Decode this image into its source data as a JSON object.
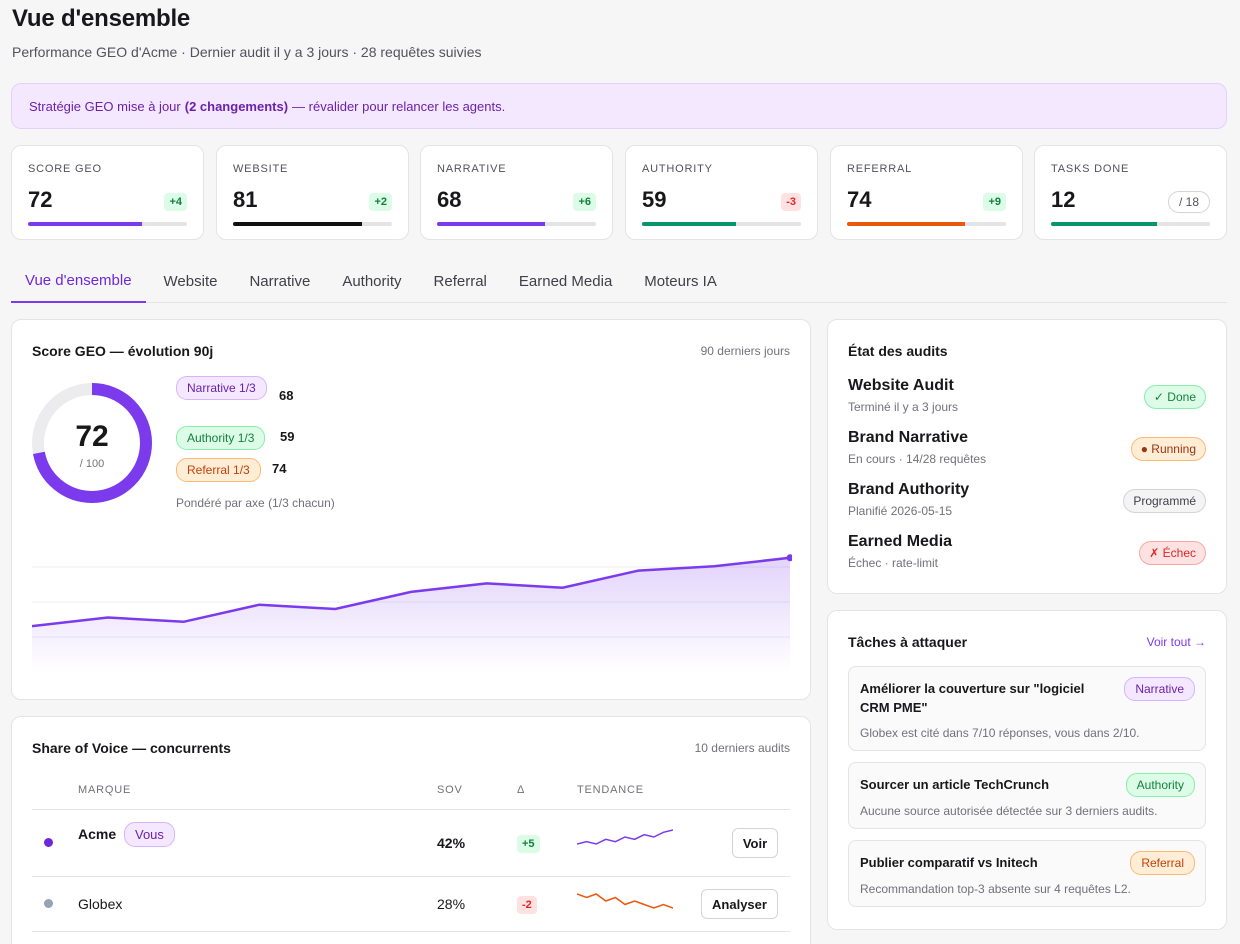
{
  "page": {
    "title": "Vue d'ensemble",
    "subtitle": "Performance GEO d'Acme · Dernier audit il y a 3 jours · 28 requêtes suivies"
  },
  "banner": {
    "text_before": "Stratégie GEO mise à jour",
    "highlight": "(2 changements)",
    "text_after": "— révalider pour relancer les agents."
  },
  "kpis": [
    {
      "label": "SCORE GEO",
      "value": "72",
      "delta": "+4",
      "delta_type": "pos",
      "progress": 0.72,
      "color": "#7c3aed"
    },
    {
      "label": "WEBSITE",
      "value": "81",
      "delta": "+2",
      "delta_type": "pos",
      "progress": 0.81,
      "color": "#111111"
    },
    {
      "label": "NARRATIVE",
      "value": "68",
      "delta": "+6",
      "delta_type": "pos",
      "progress": 0.68,
      "color": "#7c3aed"
    },
    {
      "label": "AUTHORITY",
      "value": "59",
      "delta": "-3",
      "delta_type": "neg",
      "progress": 0.59,
      "color": "#059669"
    },
    {
      "label": "REFERRAL",
      "value": "74",
      "delta": "+9",
      "delta_type": "pos",
      "progress": 0.74,
      "color": "#ea580c"
    },
    {
      "label": "TASKS DONE",
      "value": "12",
      "delta": "/ 18",
      "delta_type": "outof",
      "progress": 0.667,
      "color": "#059669"
    }
  ],
  "tabs": [
    "Vue d'ensemble",
    "Website",
    "Narrative",
    "Authority",
    "Referral",
    "Earned Media",
    "Moteurs IA"
  ],
  "score_card": {
    "title": "Score GEO — évolution 90j",
    "meta": "90 derniers jours",
    "score": "72",
    "score_max": "/ 100",
    "score_fraction": 0.72,
    "axes": [
      {
        "label": "Narrative 1/3",
        "value": "68",
        "style": "purple"
      },
      {
        "label": "Authority 1/3",
        "value": "59",
        "style": "green"
      },
      {
        "label": "Referral 1/3",
        "value": "74",
        "style": "orange"
      }
    ],
    "note": "Pondéré par axe (1/3 chacun)"
  },
  "chart_data": {
    "type": "area",
    "title": "Score GEO — évolution 90j",
    "x": [
      1,
      2,
      3,
      4,
      5,
      6,
      7,
      8,
      9,
      10,
      11
    ],
    "series": [
      {
        "values": [
          56,
          58,
          57,
          61,
          60,
          64,
          66,
          65,
          69,
          70,
          72
        ]
      }
    ],
    "ylim": [
      45,
      75
    ],
    "grid": true,
    "color": "#7c3aed"
  },
  "sov": {
    "title": "Share of Voice — concurrents",
    "meta": "10 derniers audits",
    "headers": {
      "brand": "MARQUE",
      "sov": "SOV",
      "delta": "Δ",
      "trend": "TENDANCE"
    },
    "rows": [
      {
        "brand": "Acme",
        "tag": "Vous",
        "sov": "42%",
        "delta": "+5",
        "delta_type": "pos",
        "action": "Voir",
        "dot": "#6d28d9",
        "trend_color": "#7c3aed",
        "trend": [
          3,
          4,
          3,
          5,
          4,
          6,
          5,
          7,
          6,
          8,
          9
        ]
      },
      {
        "brand": "Globex",
        "tag": "",
        "sov": "28%",
        "delta": "-2",
        "delta_type": "neg",
        "action": "Analyser",
        "dot": "#94a3b8",
        "trend_color": "#ea580c",
        "trend": [
          9,
          8,
          9,
          7,
          8,
          6,
          7,
          6,
          5,
          6,
          5
        ]
      }
    ]
  },
  "audits": {
    "title": "État des audits",
    "items": [
      {
        "name": "Website Audit",
        "sub": "Terminé il y a 3 jours",
        "status": "✓ Done",
        "style": "done"
      },
      {
        "name": "Brand Narrative",
        "sub": "En cours · 14/28 requêtes",
        "status": "● Running",
        "style": "run"
      },
      {
        "name": "Brand Authority",
        "sub": "Planifié 2026-05-15",
        "status": "Programmé",
        "style": "prog"
      },
      {
        "name": "Earned Media",
        "sub": "Échec · rate-limit",
        "status": "✗ Échec",
        "style": "fail"
      }
    ]
  },
  "tasks": {
    "title": "Tâches à attaquer",
    "link": "Voir tout →",
    "items": [
      {
        "title": "Améliorer la couverture sur \"logiciel CRM PME\"",
        "desc": "Globex est cité dans 7/10 réponses, vous dans 2/10.",
        "tag": "Narrative",
        "style": "purple"
      },
      {
        "title": "Sourcer un article TechCrunch",
        "desc": "Aucune source autorisée détectée sur 3 derniers audits.",
        "tag": "Authority",
        "style": "green"
      },
      {
        "title": "Publier comparatif vs Initech",
        "desc": "Recommandation top-3 absente sur 4 requêtes L2.",
        "tag": "Referral",
        "style": "orange"
      }
    ]
  }
}
